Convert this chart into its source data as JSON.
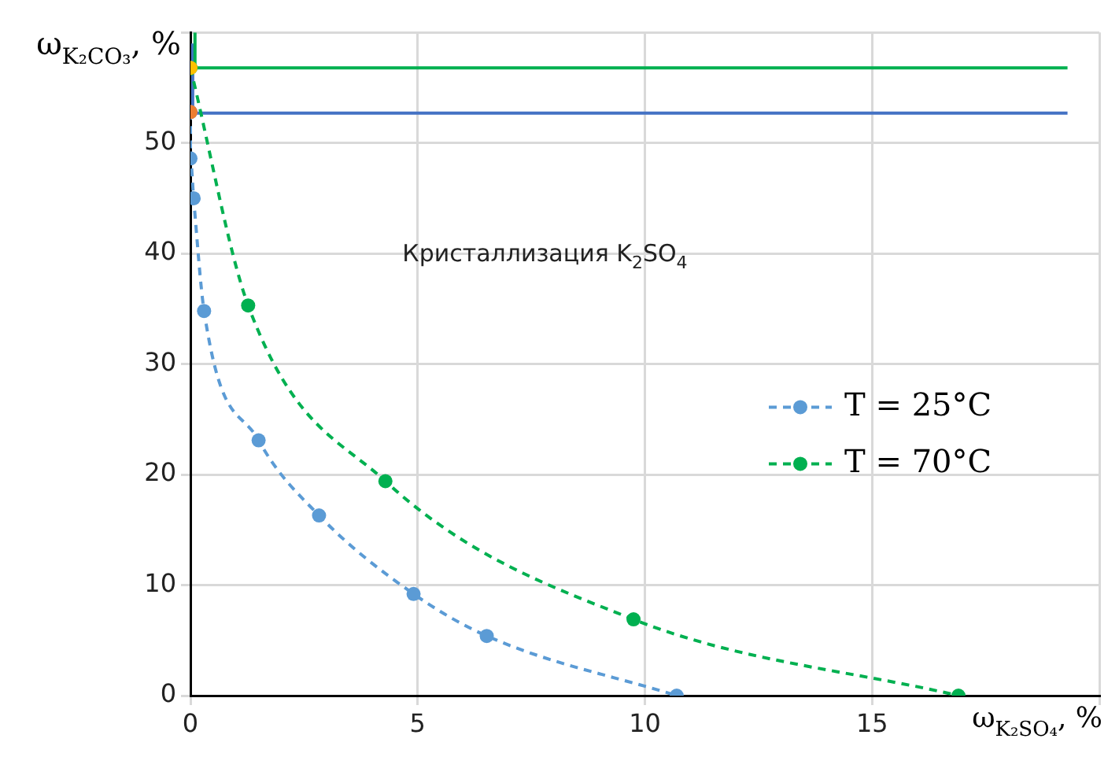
{
  "chart_data": {
    "type": "line",
    "xlabel": "ω$_{K₂SO₄}$, %",
    "ylabel": "ω$_{K₂CO₃}$, %",
    "xlim": [
      0,
      20
    ],
    "ylim": [
      0,
      60
    ],
    "xticks": [
      0,
      5,
      10,
      15,
      {
        "value": 20,
        "label": null
      }
    ],
    "yticks": [
      0,
      10,
      20,
      30,
      40,
      50,
      {
        "value": 60,
        "label": null
      }
    ],
    "grid": true,
    "legend": "right",
    "marker": "circle",
    "annotations": [
      "Кристаллизация K$_{2}$SO$_{4}$"
    ],
    "series": [
      {
        "name": "T = 25°C",
        "color": "#5b9bd5",
        "line_style": "dashed",
        "x": [
          0,
          0,
          0.07,
          0.3,
          1.5,
          2.83,
          4.91,
          6.52,
          10.7
        ],
        "values": [
          52.8,
          48.6,
          45.0,
          34.8,
          23.1,
          16.3,
          9.2,
          5.4,
          0
        ]
      },
      {
        "name": "T = 70°C",
        "color": "#00b050",
        "line_style": "dashed",
        "x": [
          0,
          1.27,
          4.29,
          9.75,
          16.9
        ],
        "values": [
          56.8,
          35.3,
          19.4,
          6.9,
          0
        ]
      },
      {
        "color": "#00b050",
        "line_style": "solid",
        "marker": "none",
        "x": [
          0.1,
          19.3
        ],
        "values": [
          56.8,
          56.8
        ]
      },
      {
        "color": "#4472c4",
        "line_style": "solid",
        "marker": "none",
        "x": [
          0.05,
          19.3
        ],
        "values": [
          52.7,
          52.7
        ]
      },
      {
        "color": "#00b050",
        "line_style": "solid",
        "marker": "none",
        "x": [
          0.1,
          0.1
        ],
        "values": [
          56.8,
          60
        ]
      },
      {
        "color": "#4472c4",
        "line_style": "solid",
        "marker": "none",
        "x": [
          0.05,
          0.05
        ],
        "values": [
          52.7,
          59
        ]
      },
      {
        "color": "#ed7d31",
        "type": "scatter",
        "x": [
          0
        ],
        "values": [
          52.8
        ]
      },
      {
        "color": "#ffc000",
        "type": "scatter",
        "x": [
          0
        ],
        "values": [
          56.8
        ]
      }
    ]
  }
}
